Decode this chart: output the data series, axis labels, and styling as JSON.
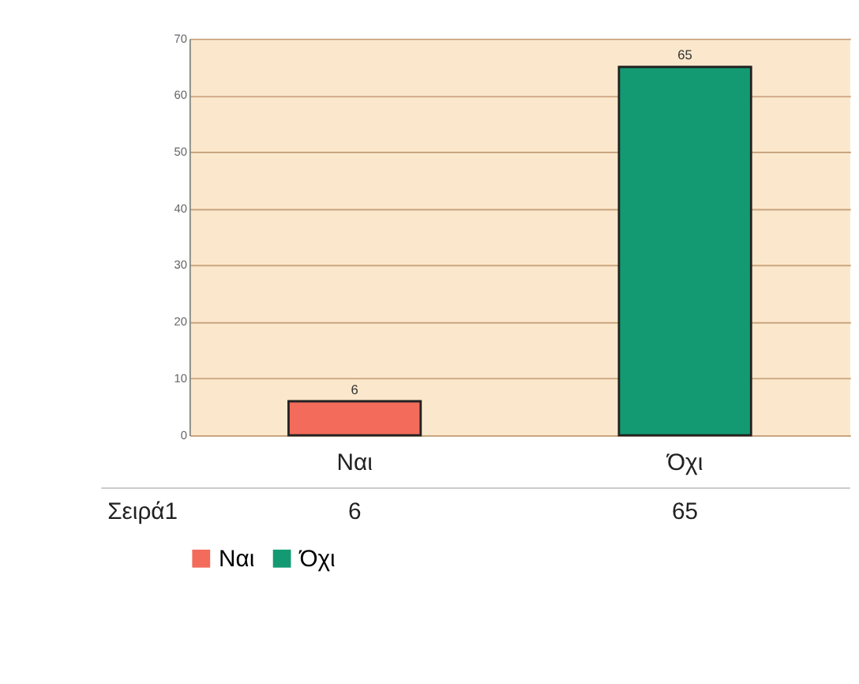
{
  "chart_data": {
    "type": "bar",
    "categories": [
      "Ναι",
      "Όχι"
    ],
    "series": [
      {
        "name": "Ναι",
        "color": "#f26b5b",
        "values": [
          6,
          null
        ],
        "value_labels": [
          "6",
          null
        ]
      },
      {
        "name": "Όχι",
        "color": "#139a72",
        "values": [
          null,
          65
        ],
        "value_labels": [
          null,
          "65"
        ]
      }
    ],
    "annotations": [
      "Σειρά1",
      "6",
      "65"
    ],
    "ylim": [
      0,
      70
    ],
    "yticks": [
      0,
      10,
      20,
      30,
      40,
      50,
      60,
      70
    ],
    "grid": "y",
    "legend": "bottom"
  }
}
